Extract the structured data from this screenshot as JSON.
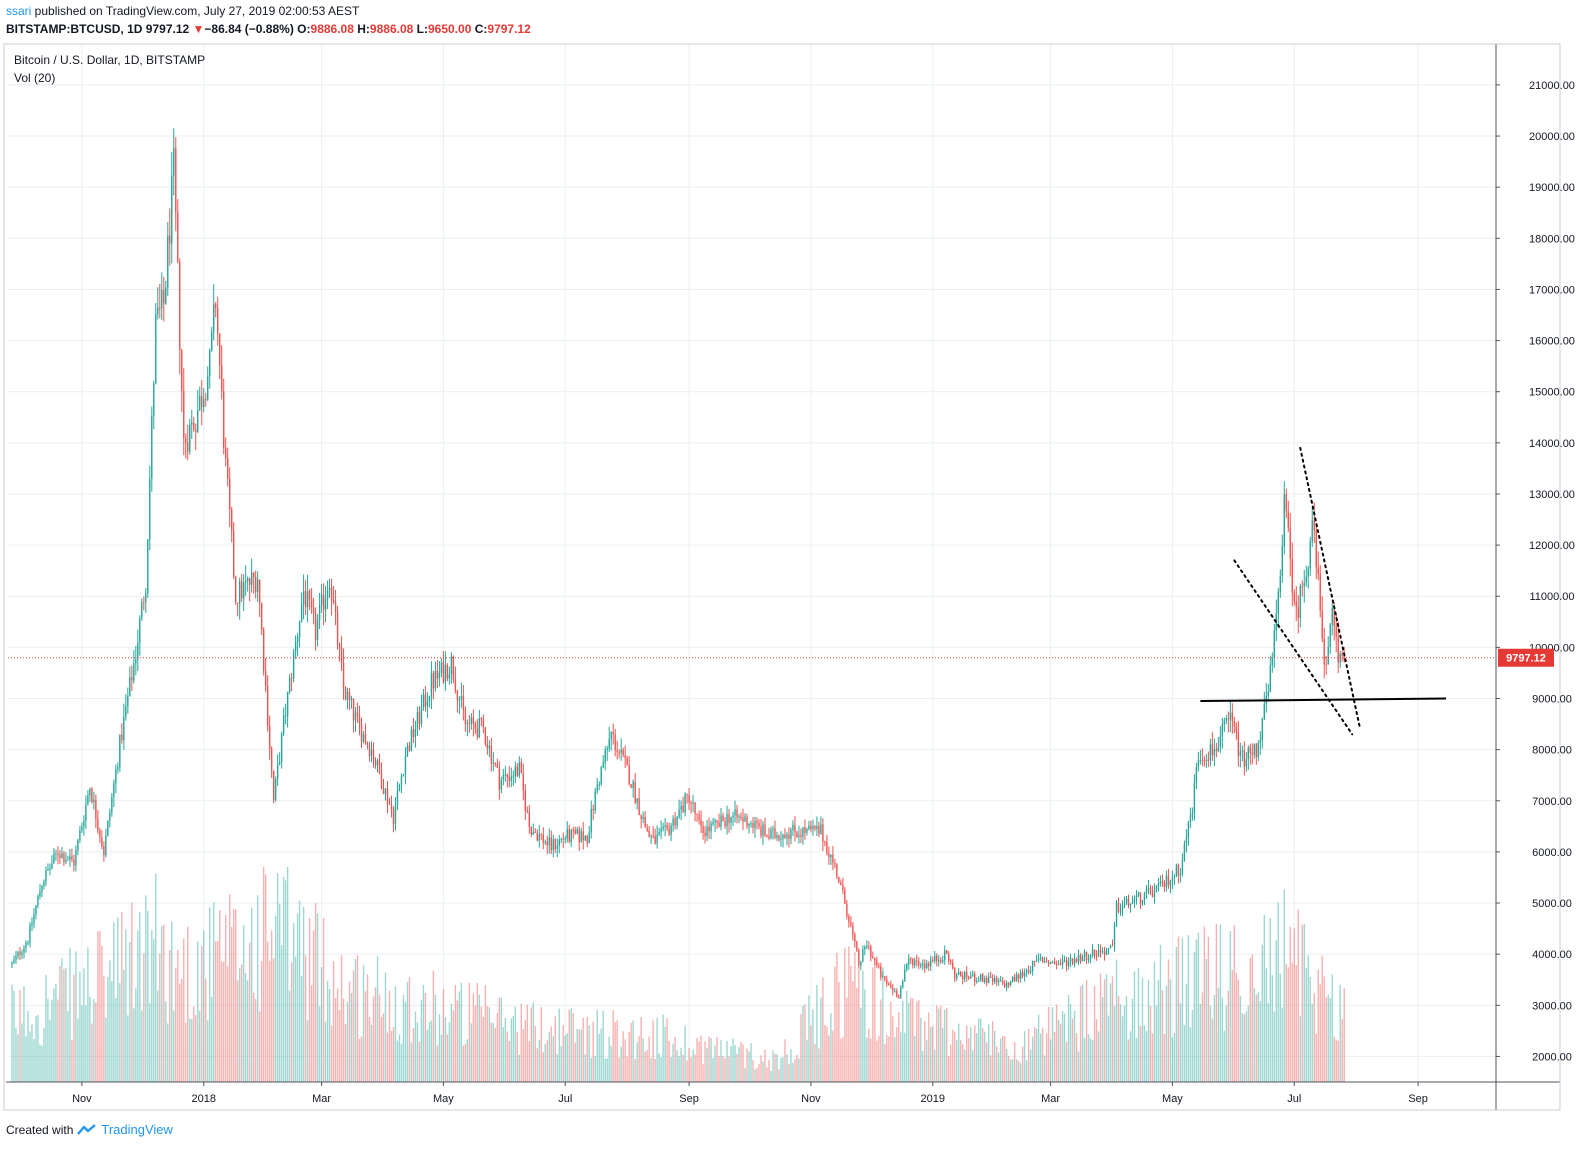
{
  "header": {
    "user": "ssari",
    "published_text": " published on TradingView.com, July 27, 2019 02:00:53 AEST",
    "symbol": "BITSTAMP:BTCUSD, 1D",
    "last": "9797.12",
    "change_arrow": "▼",
    "change": "−86.84 (−0.88%)",
    "o_label": "O:",
    "o_value": "9886.08",
    "h_label": "H:",
    "h_value": "9886.08",
    "l_label": "L:",
    "l_value": "9650.00",
    "c_label": "C:",
    "c_value": "9797.12"
  },
  "legend": {
    "series": "Bitcoin / U.S. Dollar, 1D, BITSTAMP",
    "volume": "Vol (20)"
  },
  "footer": {
    "created_with": "Created with",
    "brand": "TradingView"
  },
  "colors": {
    "up": "#26a69a",
    "down": "#ef5350",
    "last_price_line": "#e53935",
    "grid": "#e9eff3",
    "trendline": "#000000"
  },
  "chart_data": {
    "type": "candlestick",
    "symbol": "BITSTAMP:BTCUSD",
    "interval": "1D",
    "last_price": 9797.12,
    "last_price_label": "9797.12",
    "y_axis": {
      "range": [
        1500,
        21800
      ],
      "ticks": [
        "2000.00",
        "3000.00",
        "4000.00",
        "5000.00",
        "6000.00",
        "7000.00",
        "8000.00",
        "9000.00",
        "10000.00",
        "11000.00",
        "12000.00",
        "13000.00",
        "14000.00",
        "15000.00",
        "16000.00",
        "17000.00",
        "18000.00",
        "19000.00",
        "20000.00",
        "21000.00"
      ]
    },
    "x_axis": {
      "range": [
        "2017-09-25",
        "2019-10-10"
      ],
      "ticks": [
        {
          "label": "Nov",
          "date": "2017-11-01"
        },
        {
          "label": "2018",
          "date": "2018-01-01"
        },
        {
          "label": "Mar",
          "date": "2018-03-01"
        },
        {
          "label": "May",
          "date": "2018-05-01"
        },
        {
          "label": "Jul",
          "date": "2018-07-01"
        },
        {
          "label": "Sep",
          "date": "2018-09-01"
        },
        {
          "label": "Nov",
          "date": "2018-11-01"
        },
        {
          "label": "2019",
          "date": "2019-01-01"
        },
        {
          "label": "Mar",
          "date": "2019-03-01"
        },
        {
          "label": "May",
          "date": "2019-05-01"
        },
        {
          "label": "Jul",
          "date": "2019-07-01"
        },
        {
          "label": "Sep",
          "date": "2019-09-01"
        }
      ]
    },
    "grid": true,
    "price_path": [
      [
        "2017-09-27",
        3800
      ],
      [
        "2017-10-05",
        4300
      ],
      [
        "2017-10-12",
        5400
      ],
      [
        "2017-10-20",
        6000
      ],
      [
        "2017-10-28",
        5800
      ],
      [
        "2017-11-05",
        7300
      ],
      [
        "2017-11-12",
        6000
      ],
      [
        "2017-11-20",
        8100
      ],
      [
        "2017-11-28",
        9900
      ],
      [
        "2017-12-03",
        11300
      ],
      [
        "2017-12-08",
        16300
      ],
      [
        "2017-12-12",
        16700
      ],
      [
        "2017-12-17",
        19300
      ],
      [
        "2017-12-22",
        14000
      ],
      [
        "2017-12-28",
        14500
      ],
      [
        "2018-01-04",
        15500
      ],
      [
        "2018-01-07",
        16800
      ],
      [
        "2018-01-12",
        13500
      ],
      [
        "2018-01-17",
        11000
      ],
      [
        "2018-01-28",
        11400
      ],
      [
        "2018-02-05",
        7000
      ],
      [
        "2018-02-10",
        8500
      ],
      [
        "2018-02-20",
        11100
      ],
      [
        "2018-02-26",
        10300
      ],
      [
        "2018-03-05",
        11400
      ],
      [
        "2018-03-12",
        9200
      ],
      [
        "2018-03-19",
        8500
      ],
      [
        "2018-03-26",
        8000
      ],
      [
        "2018-04-06",
        6700
      ],
      [
        "2018-04-12",
        7900
      ],
      [
        "2018-04-25",
        9300
      ],
      [
        "2018-05-05",
        9700
      ],
      [
        "2018-05-12",
        8500
      ],
      [
        "2018-05-21",
        8400
      ],
      [
        "2018-05-29",
        7400
      ],
      [
        "2018-06-08",
        7600
      ],
      [
        "2018-06-13",
        6500
      ],
      [
        "2018-06-24",
        6100
      ],
      [
        "2018-07-01",
        6300
      ],
      [
        "2018-07-12",
        6300
      ],
      [
        "2018-07-17",
        7300
      ],
      [
        "2018-07-24",
        8300
      ],
      [
        "2018-08-02",
        7500
      ],
      [
        "2018-08-10",
        6500
      ],
      [
        "2018-08-14",
        6200
      ],
      [
        "2018-08-21",
        6400
      ],
      [
        "2018-09-01",
        7100
      ],
      [
        "2018-09-07",
        6400
      ],
      [
        "2018-09-15",
        6500
      ],
      [
        "2018-09-21",
        6700
      ],
      [
        "2018-10-01",
        6600
      ],
      [
        "2018-10-11",
        6300
      ],
      [
        "2018-10-20",
        6400
      ],
      [
        "2018-11-06",
        6400
      ],
      [
        "2018-11-14",
        5600
      ],
      [
        "2018-11-20",
        4700
      ],
      [
        "2018-11-25",
        3800
      ],
      [
        "2018-11-29",
        4200
      ],
      [
        "2018-12-07",
        3500
      ],
      [
        "2018-12-15",
        3200
      ],
      [
        "2018-12-20",
        3900
      ],
      [
        "2018-12-28",
        3800
      ],
      [
        "2019-01-08",
        4000
      ],
      [
        "2019-01-12",
        3600
      ],
      [
        "2019-01-28",
        3500
      ],
      [
        "2019-02-07",
        3400
      ],
      [
        "2019-02-14",
        3600
      ],
      [
        "2019-02-24",
        3900
      ],
      [
        "2019-03-05",
        3800
      ],
      [
        "2019-03-20",
        4000
      ],
      [
        "2019-04-01",
        4100
      ],
      [
        "2019-04-03",
        4900
      ],
      [
        "2019-04-15",
        5100
      ],
      [
        "2019-04-25",
        5300
      ],
      [
        "2019-05-05",
        5700
      ],
      [
        "2019-05-11",
        6900
      ],
      [
        "2019-05-14",
        7900
      ],
      [
        "2019-05-22",
        8000
      ],
      [
        "2019-05-30",
        8600
      ],
      [
        "2019-06-05",
        7800
      ],
      [
        "2019-06-12",
        8000
      ],
      [
        "2019-06-18",
        9100
      ],
      [
        "2019-06-22",
        10500
      ],
      [
        "2019-06-26",
        12800
      ],
      [
        "2019-07-02",
        10600
      ],
      [
        "2019-07-08",
        11800
      ],
      [
        "2019-07-10",
        12500
      ],
      [
        "2019-07-15",
        10300
      ],
      [
        "2019-07-17",
        9500
      ],
      [
        "2019-07-20",
        10600
      ],
      [
        "2019-07-23",
        9800
      ],
      [
        "2019-07-26",
        9797
      ]
    ],
    "volume_path": [
      [
        "2017-09-27",
        0.35
      ],
      [
        "2017-11-10",
        0.55
      ],
      [
        "2017-12-08",
        0.75
      ],
      [
        "2017-12-20",
        0.6
      ],
      [
        "2018-01-17",
        0.7
      ],
      [
        "2018-02-06",
        0.85
      ],
      [
        "2018-03-15",
        0.5
      ],
      [
        "2018-05-01",
        0.4
      ],
      [
        "2018-06-15",
        0.3
      ],
      [
        "2018-08-15",
        0.25
      ],
      [
        "2018-10-15",
        0.12
      ],
      [
        "2018-11-20",
        0.55
      ],
      [
        "2018-12-15",
        0.35
      ],
      [
        "2019-02-15",
        0.2
      ],
      [
        "2019-04-03",
        0.45
      ],
      [
        "2019-05-15",
        0.55
      ],
      [
        "2019-06-26",
        0.7
      ],
      [
        "2019-07-26",
        0.4
      ]
    ],
    "trendlines": [
      {
        "style": "solid",
        "from": [
          "2019-05-15",
          8950
        ],
        "to": [
          "2019-09-15",
          9000
        ]
      },
      {
        "style": "dotted",
        "from": [
          "2019-06-01",
          11700
        ],
        "to": [
          "2019-07-30",
          8300
        ]
      },
      {
        "style": "dotted",
        "from": [
          "2019-07-04",
          13900
        ],
        "to": [
          "2019-08-03",
          8400
        ]
      }
    ]
  }
}
